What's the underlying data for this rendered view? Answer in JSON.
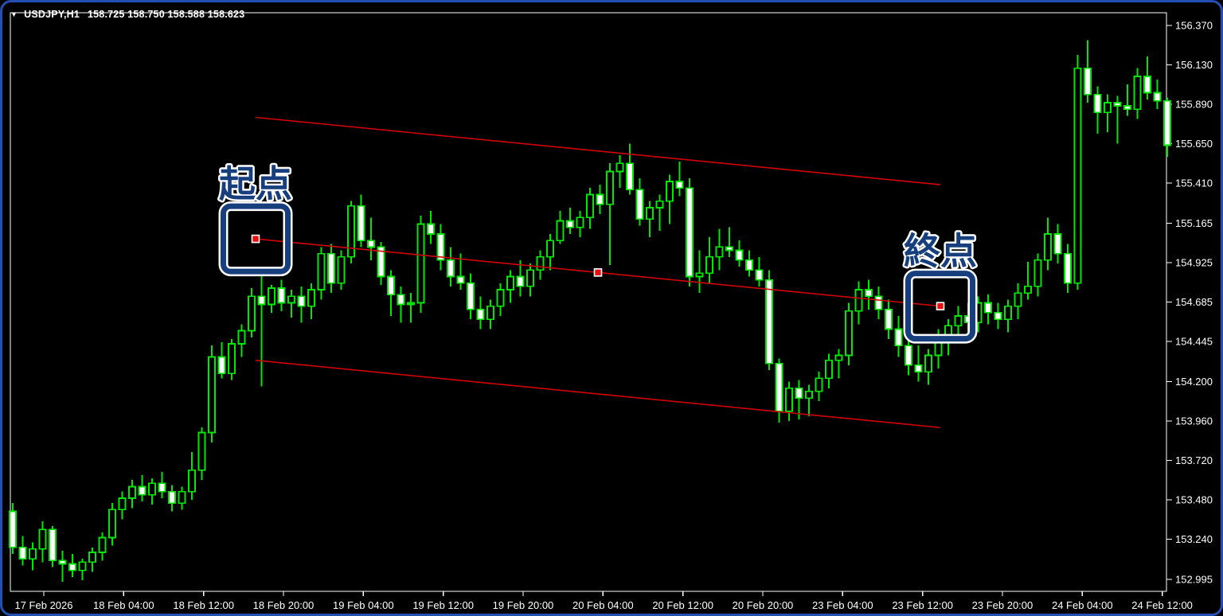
{
  "window": {
    "symbol_dropdown_icon": "▼",
    "title_symbol": "USDJPY,H1",
    "title_quotes": "158.725 158.750 158.588 158.623"
  },
  "colors": {
    "background": "#000000",
    "window_border": "#2450b4",
    "frame": "#ffffff",
    "axis_text": "#ffffff",
    "candle_outline": "#00e800",
    "bull_fill": "#000000",
    "bear_fill": "#ffffff",
    "channel_line": "#d40000",
    "handle_fill": "#e81010",
    "handle_border": "#ffffff",
    "annotation_navy": "#173f7d",
    "annotation_outline": "#ffffff"
  },
  "y_axis": {
    "labels": [
      "156.370",
      "156.130",
      "155.890",
      "155.650",
      "155.410",
      "155.165",
      "154.925",
      "154.685",
      "154.445",
      "154.200",
      "153.960",
      "153.720",
      "153.480",
      "153.240",
      "152.995"
    ]
  },
  "x_axis": {
    "labels": [
      "17 Feb 2026",
      "18 Feb 04:00",
      "18 Feb 12:00",
      "18 Feb 20:00",
      "19 Feb 04:00",
      "19 Feb 12:00",
      "19 Feb 20:00",
      "20 Feb 04:00",
      "20 Feb 12:00",
      "20 Feb 20:00",
      "23 Feb 04:00",
      "23 Feb 12:00",
      "23 Feb 20:00",
      "24 Feb 04:00",
      "24 Feb 12:00"
    ]
  },
  "annotations": [
    {
      "text": "起点",
      "anchor": "start"
    },
    {
      "text": "終点",
      "anchor": "end"
    }
  ],
  "chart_data": {
    "type": "candlestick",
    "symbol": "USDJPY",
    "timeframe": "H1",
    "title": "USDJPY,H1 158.725 158.750 158.588 158.623",
    "start_time": "2026-02-17 17:00",
    "interval_hours": 1,
    "ylim": [
      152.995,
      156.37
    ],
    "x_tick_labels": [
      "17 Feb 2026",
      "18 Feb 04:00",
      "18 Feb 12:00",
      "18 Feb 20:00",
      "19 Feb 04:00",
      "19 Feb 12:00",
      "19 Feb 20:00",
      "20 Feb 04:00",
      "20 Feb 12:00",
      "20 Feb 20:00",
      "23 Feb 04:00",
      "23 Feb 12:00",
      "23 Feb 20:00",
      "24 Feb 04:00",
      "24 Feb 12:00"
    ],
    "y_tick_values": [
      156.37,
      156.13,
      155.89,
      155.65,
      155.41,
      155.165,
      154.925,
      154.685,
      154.445,
      154.2,
      153.96,
      153.72,
      153.48,
      153.24,
      152.995
    ],
    "grid": false,
    "channel": {
      "type": "equidistant-channel",
      "start_bar": 24.4,
      "end_bar": 93.2,
      "start_price": 155.07,
      "end_price": 154.66,
      "half_width": 0.74,
      "handles": [
        "start",
        "middle",
        "end"
      ]
    },
    "candles_format": [
      "open",
      "high",
      "low",
      "close"
    ],
    "candles": [
      [
        153.41,
        153.46,
        153.15,
        153.19
      ],
      [
        153.19,
        153.26,
        153.08,
        153.12
      ],
      [
        153.12,
        153.22,
        153.05,
        153.18
      ],
      [
        153.18,
        153.35,
        153.1,
        153.3
      ],
      [
        153.3,
        153.32,
        153.07,
        153.11
      ],
      [
        153.11,
        153.17,
        152.98,
        153.09
      ],
      [
        153.09,
        153.15,
        153.01,
        153.05
      ],
      [
        153.05,
        153.12,
        152.99,
        153.1
      ],
      [
        153.1,
        153.19,
        153.04,
        153.16
      ],
      [
        153.16,
        153.28,
        153.11,
        153.25
      ],
      [
        153.25,
        153.46,
        153.2,
        153.42
      ],
      [
        153.42,
        153.53,
        153.36,
        153.49
      ],
      [
        153.49,
        153.6,
        153.43,
        153.56
      ],
      [
        153.56,
        153.63,
        153.47,
        153.51
      ],
      [
        153.51,
        153.61,
        153.45,
        153.58
      ],
      [
        153.58,
        153.65,
        153.49,
        153.53
      ],
      [
        153.53,
        153.57,
        153.41,
        153.46
      ],
      [
        153.46,
        153.56,
        153.42,
        153.53
      ],
      [
        153.53,
        153.77,
        153.48,
        153.66
      ],
      [
        153.66,
        153.92,
        153.6,
        153.89
      ],
      [
        153.89,
        154.42,
        153.83,
        154.35
      ],
      [
        154.35,
        154.44,
        154.22,
        154.25
      ],
      [
        154.25,
        154.46,
        154.21,
        154.43
      ],
      [
        154.43,
        154.55,
        154.35,
        154.51
      ],
      [
        154.51,
        154.77,
        154.47,
        154.72
      ],
      [
        154.72,
        154.88,
        154.17,
        154.67
      ],
      [
        154.67,
        154.79,
        154.62,
        154.77
      ],
      [
        154.77,
        154.82,
        154.63,
        154.68
      ],
      [
        154.68,
        154.76,
        154.59,
        154.72
      ],
      [
        154.72,
        154.78,
        154.56,
        154.66
      ],
      [
        154.66,
        154.8,
        154.58,
        154.76
      ],
      [
        154.76,
        155.02,
        154.7,
        154.98
      ],
      [
        154.98,
        155.04,
        154.74,
        154.8
      ],
      [
        154.8,
        155.0,
        154.76,
        154.96
      ],
      [
        154.96,
        155.3,
        154.92,
        155.27
      ],
      [
        155.27,
        155.34,
        155.02,
        155.06
      ],
      [
        155.06,
        155.2,
        154.94,
        155.02
      ],
      [
        155.02,
        155.05,
        154.79,
        154.84
      ],
      [
        154.84,
        154.88,
        154.6,
        154.73
      ],
      [
        154.73,
        154.78,
        154.56,
        154.67
      ],
      [
        154.67,
        154.74,
        154.56,
        154.68
      ],
      [
        154.68,
        155.21,
        154.62,
        155.16
      ],
      [
        155.16,
        155.24,
        155.04,
        155.1
      ],
      [
        155.1,
        155.16,
        154.88,
        154.94
      ],
      [
        154.94,
        155.02,
        154.78,
        154.84
      ],
      [
        154.84,
        154.98,
        154.76,
        154.8
      ],
      [
        154.8,
        154.86,
        154.58,
        154.64
      ],
      [
        154.64,
        154.72,
        154.52,
        154.58
      ],
      [
        154.58,
        154.7,
        154.52,
        154.66
      ],
      [
        154.66,
        154.8,
        154.6,
        154.76
      ],
      [
        154.76,
        154.88,
        154.68,
        154.84
      ],
      [
        154.84,
        154.94,
        154.72,
        154.78
      ],
      [
        154.78,
        154.92,
        154.72,
        154.88
      ],
      [
        154.88,
        155.0,
        154.82,
        154.96
      ],
      [
        154.96,
        155.1,
        154.88,
        155.06
      ],
      [
        155.06,
        155.24,
        155.04,
        155.18
      ],
      [
        155.18,
        155.26,
        155.1,
        155.14
      ],
      [
        155.14,
        155.24,
        155.08,
        155.2
      ],
      [
        155.2,
        155.38,
        155.13,
        155.34
      ],
      [
        155.34,
        155.4,
        155.22,
        155.28
      ],
      [
        155.28,
        155.53,
        154.91,
        155.48
      ],
      [
        155.48,
        155.58,
        155.38,
        155.53
      ],
      [
        155.53,
        155.65,
        155.34,
        155.37
      ],
      [
        155.37,
        155.44,
        155.15,
        155.19
      ],
      [
        155.19,
        155.3,
        155.08,
        155.26
      ],
      [
        155.26,
        155.34,
        155.12,
        155.3
      ],
      [
        155.3,
        155.46,
        155.16,
        155.42
      ],
      [
        155.42,
        155.54,
        155.33,
        155.38
      ],
      [
        155.38,
        155.44,
        154.78,
        154.84
      ],
      [
        154.84,
        155.0,
        154.74,
        154.86
      ],
      [
        154.86,
        155.08,
        154.8,
        154.96
      ],
      [
        154.96,
        155.13,
        154.88,
        155.02
      ],
      [
        155.02,
        155.14,
        154.96,
        155.0
      ],
      [
        155.0,
        155.06,
        154.9,
        154.94
      ],
      [
        154.94,
        155.0,
        154.84,
        154.88
      ],
      [
        154.88,
        154.96,
        154.78,
        154.82
      ],
      [
        154.82,
        154.88,
        154.27,
        154.31
      ],
      [
        154.31,
        154.34,
        153.95,
        154.02
      ],
      [
        154.02,
        154.2,
        153.96,
        154.16
      ],
      [
        154.16,
        154.21,
        153.97,
        154.1
      ],
      [
        154.1,
        154.18,
        153.99,
        154.14
      ],
      [
        154.14,
        154.26,
        154.08,
        154.22
      ],
      [
        154.22,
        154.37,
        154.16,
        154.33
      ],
      [
        154.33,
        154.4,
        154.22,
        154.36
      ],
      [
        154.36,
        154.68,
        154.3,
        154.63
      ],
      [
        154.63,
        154.81,
        154.55,
        154.76
      ],
      [
        154.76,
        154.82,
        154.64,
        154.72
      ],
      [
        154.72,
        154.78,
        154.58,
        154.64
      ],
      [
        154.64,
        154.7,
        154.46,
        154.52
      ],
      [
        154.52,
        154.6,
        154.35,
        154.42
      ],
      [
        154.42,
        154.5,
        154.24,
        154.3
      ],
      [
        154.3,
        154.42,
        154.2,
        154.26
      ],
      [
        154.26,
        154.4,
        154.18,
        154.36
      ],
      [
        154.36,
        154.52,
        154.28,
        154.48
      ],
      [
        154.48,
        154.58,
        154.36,
        154.54
      ],
      [
        154.54,
        154.66,
        154.44,
        154.6
      ],
      [
        154.6,
        154.68,
        154.48,
        154.56
      ],
      [
        154.56,
        154.72,
        154.5,
        154.68
      ],
      [
        154.68,
        154.73,
        154.55,
        154.62
      ],
      [
        154.62,
        154.68,
        154.52,
        154.58
      ],
      [
        154.58,
        154.7,
        154.5,
        154.66
      ],
      [
        154.66,
        154.8,
        154.58,
        154.74
      ],
      [
        154.74,
        154.93,
        154.7,
        154.78
      ],
      [
        154.78,
        154.98,
        154.72,
        154.94
      ],
      [
        154.94,
        155.2,
        154.88,
        155.1
      ],
      [
        155.1,
        155.16,
        154.92,
        154.98
      ],
      [
        154.98,
        155.04,
        154.74,
        154.8
      ],
      [
        154.8,
        156.19,
        154.76,
        156.11
      ],
      [
        156.11,
        156.28,
        155.9,
        155.95
      ],
      [
        155.95,
        156.0,
        155.71,
        155.84
      ],
      [
        155.84,
        155.95,
        155.72,
        155.9
      ],
      [
        155.9,
        155.94,
        155.65,
        155.88
      ],
      [
        155.88,
        156.01,
        155.82,
        155.86
      ],
      [
        155.86,
        156.11,
        155.8,
        156.06
      ],
      [
        156.06,
        156.18,
        155.92,
        155.96
      ],
      [
        155.96,
        156.04,
        155.86,
        155.91
      ],
      [
        155.91,
        155.93,
        155.57,
        155.64
      ]
    ]
  }
}
